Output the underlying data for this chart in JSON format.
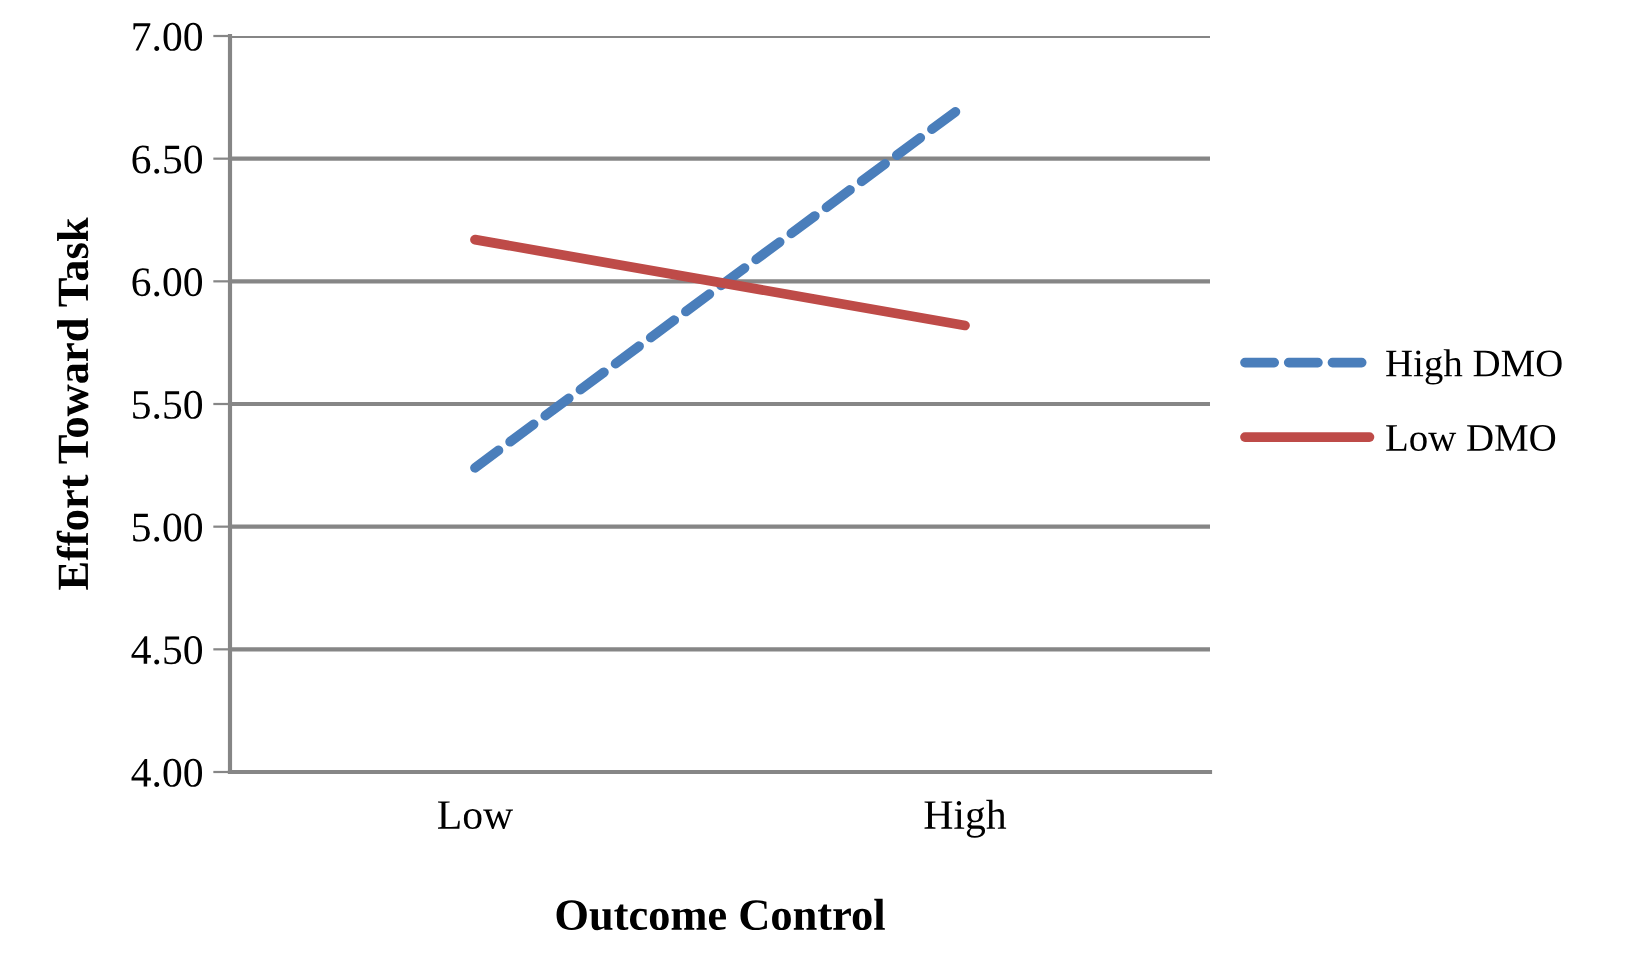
{
  "chart_data": {
    "type": "line",
    "xlabel": "Outcome Control",
    "ylabel": "Effort Toward Task",
    "categories": [
      "Low",
      "High"
    ],
    "series": [
      {
        "name": "High DMO",
        "color": "#4a7ebb",
        "values": [
          5.24,
          6.72
        ],
        "line_style": "dashed"
      },
      {
        "name": "Low DMO",
        "color": "#be4b48",
        "values": [
          6.17,
          5.82
        ],
        "line_style": "solid"
      }
    ],
    "ylim": [
      4,
      7
    ],
    "yticks": [
      {
        "value": 4,
        "label": "4.00"
      },
      {
        "value": 4.5,
        "label": "4.50"
      },
      {
        "value": 5,
        "label": "5.00"
      },
      {
        "value": 5.5,
        "label": "5.50"
      },
      {
        "value": 6,
        "label": "6.00"
      },
      {
        "value": 6.5,
        "label": "6.50"
      },
      {
        "value": 7,
        "label": "7.00"
      }
    ],
    "grid": "y",
    "legend": "right",
    "marker": "none"
  }
}
